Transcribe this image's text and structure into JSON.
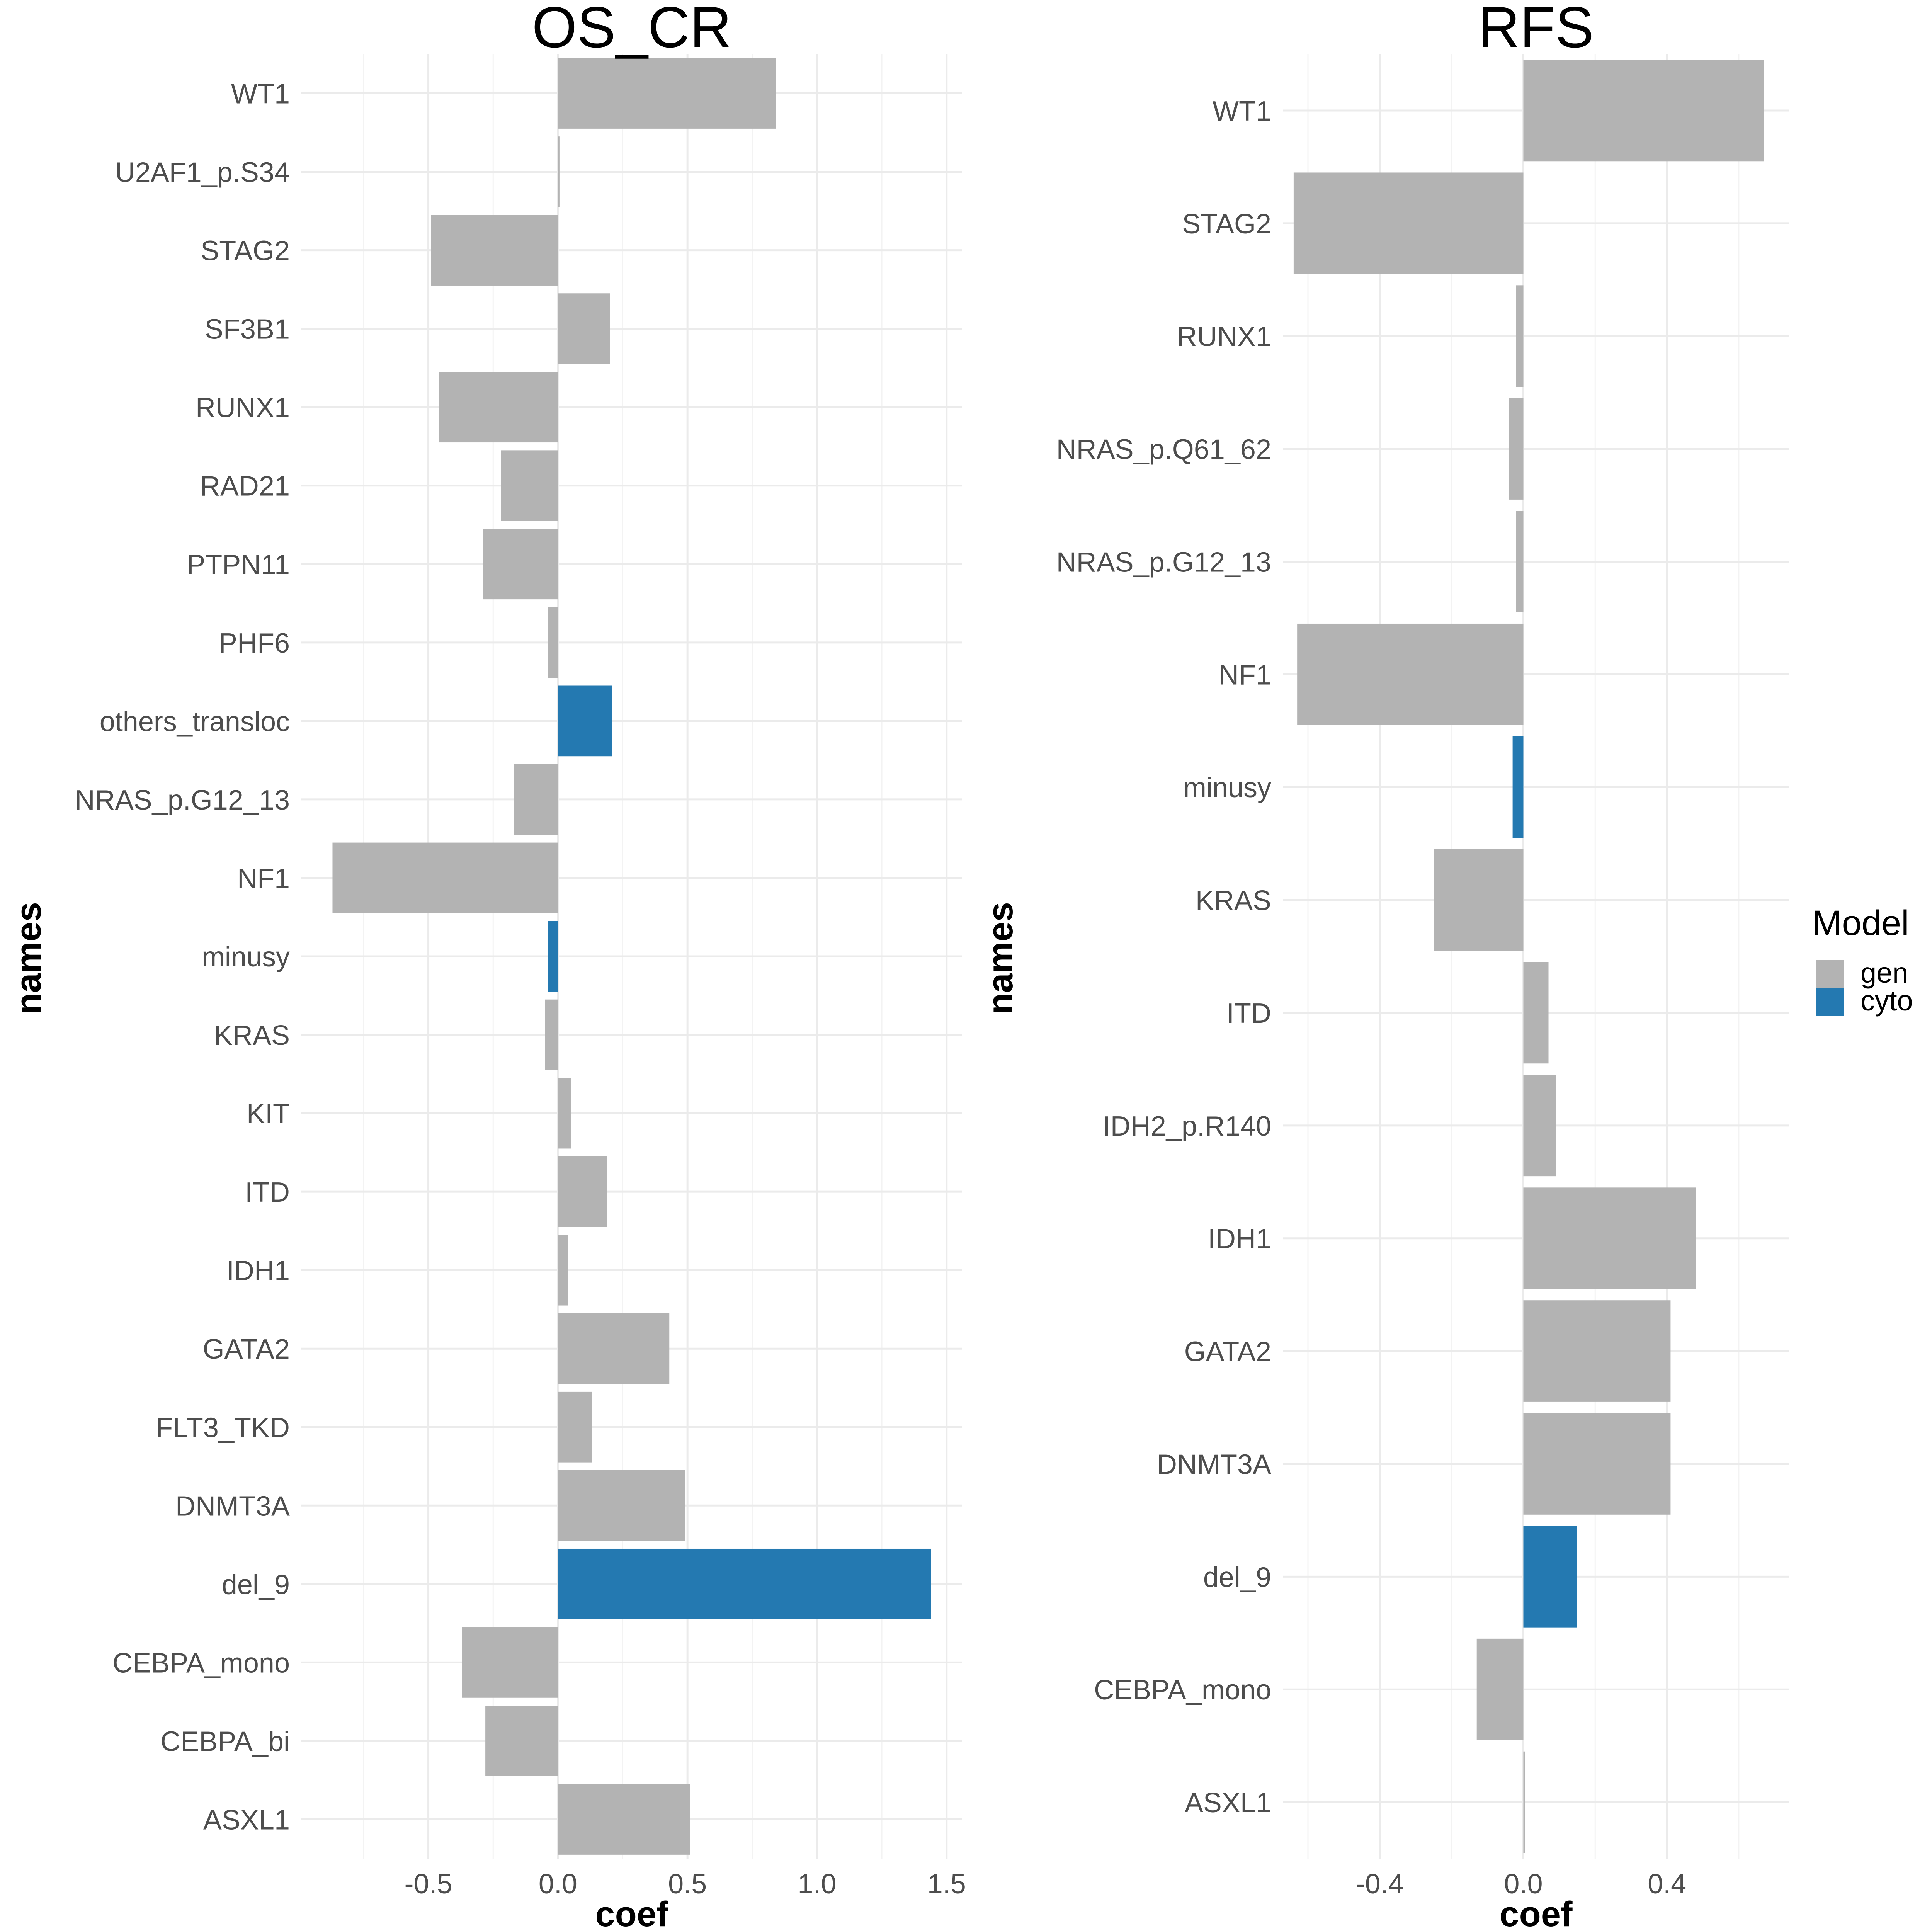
{
  "colors": {
    "gen": "#b3b3b3",
    "cyto": "#2479b1"
  },
  "legend": {
    "title": "Model",
    "entries": [
      {
        "key": "gen",
        "label": "gen"
      },
      {
        "key": "cyto",
        "label": "cyto"
      }
    ]
  },
  "chart_data": [
    {
      "type": "bar",
      "orientation": "horizontal",
      "title": "OS_CR",
      "xlabel": "coef",
      "ylabel": "names",
      "xlim": [
        -0.99,
        1.56
      ],
      "xticks": [
        -0.5,
        0.0,
        0.5,
        1.0,
        1.5
      ],
      "xtick_labels": [
        "-0.5",
        "0.0",
        "0.5",
        "1.0",
        "1.5"
      ],
      "grid": true,
      "legend": "none",
      "categories": [
        "WT1",
        "U2AF1_p.S34",
        "STAG2",
        "SF3B1",
        "RUNX1",
        "RAD21",
        "PTPN11",
        "PHF6",
        "others_transloc",
        "NRAS_p.G12_13",
        "NF1",
        "minusy",
        "KRAS",
        "KIT",
        "ITD",
        "IDH1",
        "GATA2",
        "FLT3_TKD",
        "DNMT3A",
        "del_9",
        "CEBPA_mono",
        "CEBPA_bi",
        "ASXL1"
      ],
      "values": [
        0.84,
        0.005,
        -0.49,
        0.2,
        -0.46,
        -0.22,
        -0.29,
        -0.04,
        0.21,
        -0.17,
        -0.87,
        -0.04,
        -0.05,
        0.05,
        0.19,
        0.04,
        0.43,
        0.13,
        0.49,
        1.44,
        -0.37,
        -0.28,
        0.51
      ],
      "model": [
        "gen",
        "gen",
        "gen",
        "gen",
        "gen",
        "gen",
        "gen",
        "gen",
        "cyto",
        "gen",
        "gen",
        "cyto",
        "gen",
        "gen",
        "gen",
        "gen",
        "gen",
        "gen",
        "gen",
        "cyto",
        "gen",
        "gen",
        "gen"
      ]
    },
    {
      "type": "bar",
      "orientation": "horizontal",
      "title": "RFS",
      "xlabel": "coef",
      "ylabel": "names",
      "xlim": [
        -0.67,
        0.74
      ],
      "xticks": [
        -0.4,
        0.0,
        0.4
      ],
      "xtick_labels": [
        "-0.4",
        "0.0",
        "0.4"
      ],
      "grid": true,
      "legend": "right",
      "categories": [
        "WT1",
        "STAG2",
        "RUNX1",
        "NRAS_p.Q61_62",
        "NRAS_p.G12_13",
        "NF1",
        "minusy",
        "KRAS",
        "ITD",
        "IDH2_p.R140",
        "IDH1",
        "GATA2",
        "DNMT3A",
        "del_9",
        "CEBPA_mono",
        "ASXL1"
      ],
      "values": [
        0.67,
        -0.64,
        -0.02,
        -0.04,
        -0.02,
        -0.63,
        -0.03,
        -0.25,
        0.07,
        0.09,
        0.48,
        0.41,
        0.41,
        0.15,
        -0.13,
        0.0
      ],
      "model": [
        "gen",
        "gen",
        "gen",
        "gen",
        "gen",
        "gen",
        "cyto",
        "gen",
        "gen",
        "gen",
        "gen",
        "gen",
        "gen",
        "cyto",
        "gen",
        "gen"
      ]
    }
  ]
}
